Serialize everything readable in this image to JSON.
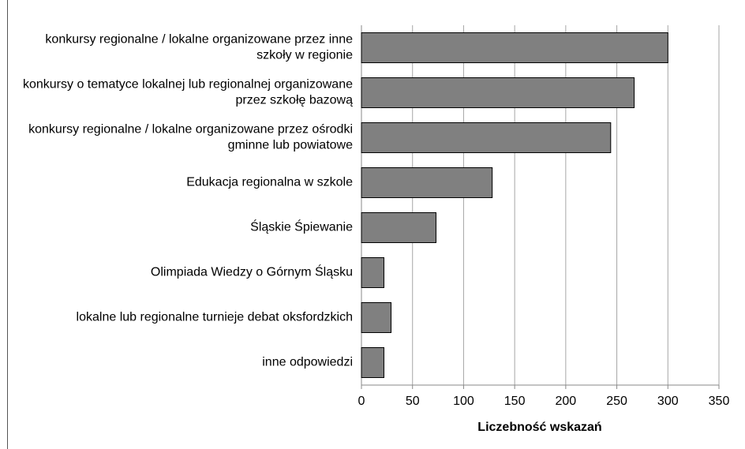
{
  "chart_data": {
    "type": "barh",
    "categories": [
      "konkursy regionalne / lokalne organizowane przez inne szkoły w regionie",
      "konkursy o tematyce lokalnej lub regionalnej organizowane przez szkołę bazową",
      "konkursy regionalne / lokalne organizowane przez ośrodki gminne lub powiatowe",
      "Edukacja regionalna w szkole",
      "Śląskie Śpiewanie",
      "Olimpiada Wiedzy o Górnym Śląsku",
      "lokalne lub regionalne turnieje debat oksfordzkich",
      "inne odpowiedzi"
    ],
    "values": [
      300,
      267,
      244,
      128,
      73,
      22,
      29,
      22
    ],
    "color": "#808080",
    "xlabel": "Liczebność wskazań",
    "xlim": [
      0,
      350
    ],
    "xticks": [
      0,
      50,
      100,
      150,
      200,
      250,
      300,
      350
    ],
    "grid": true
  }
}
